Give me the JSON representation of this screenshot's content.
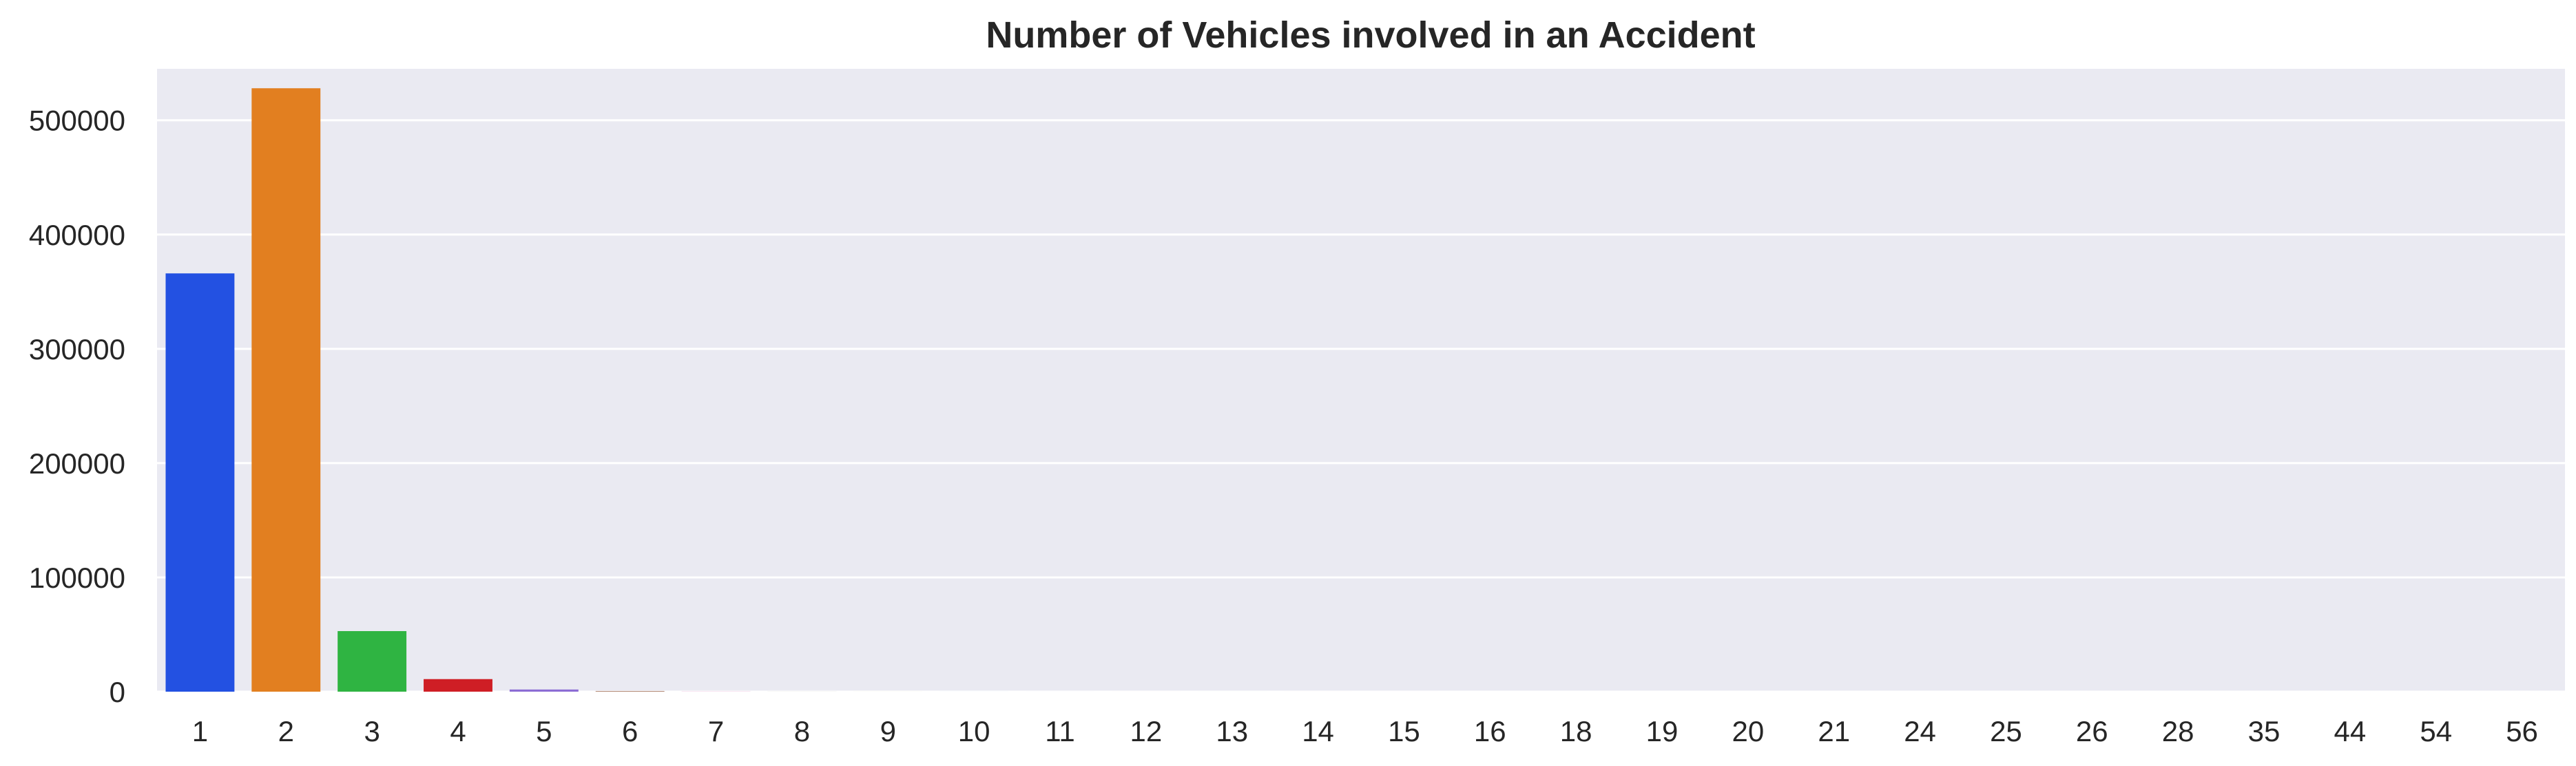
{
  "chart_data": {
    "type": "bar",
    "title": "Number of Vehicles involved in an Accident",
    "xlabel": "",
    "ylabel": "",
    "categories": [
      "1",
      "2",
      "3",
      "4",
      "5",
      "6",
      "7",
      "8",
      "9",
      "10",
      "11",
      "12",
      "13",
      "14",
      "15",
      "16",
      "18",
      "19",
      "20",
      "21",
      "24",
      "25",
      "26",
      "28",
      "35",
      "44",
      "54",
      "56"
    ],
    "values": [
      366000,
      528000,
      53000,
      11000,
      1900,
      400,
      120,
      40,
      15,
      8,
      5,
      4,
      3,
      2,
      2,
      1,
      1,
      1,
      1,
      1,
      1,
      1,
      1,
      1,
      1,
      1,
      1,
      1
    ],
    "colors": [
      "#2351e2",
      "#e27f20",
      "#2fb442",
      "#cf1e25",
      "#8c6cd4",
      "#8b4d2f",
      "#da7ec2",
      "#8c8c8c",
      "#c9b531",
      "#37bde5",
      "#2351e2",
      "#e27f20",
      "#2fb442",
      "#cf1e25",
      "#8c6cd4",
      "#8b4d2f",
      "#da7ec2",
      "#8c8c8c",
      "#c9b531",
      "#37bde5",
      "#2351e2",
      "#e27f20",
      "#2fb442",
      "#cf1e25",
      "#8c6cd4",
      "#8b4d2f",
      "#da7ec2",
      "#8c8c8c"
    ],
    "ylim": [
      0,
      545000
    ],
    "yticks": [
      0,
      100000,
      200000,
      300000,
      400000,
      500000
    ],
    "ytick_labels": [
      "0",
      "100000",
      "200000",
      "300000",
      "400000",
      "500000"
    ],
    "grid": true,
    "background": "#eaeaf2"
  }
}
